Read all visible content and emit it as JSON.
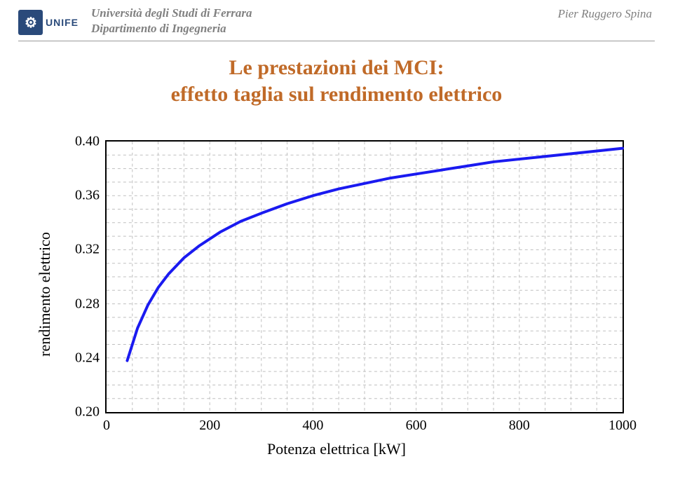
{
  "header": {
    "logo_text": "UNIFE",
    "logo_mark": "⚙",
    "uni_line1": "Università degli Studi di Ferrara",
    "uni_line2": "Dipartimento di Ingegneria",
    "author": "Pier Ruggero Spina"
  },
  "title": {
    "line1": "Le prestazioni dei MCI:",
    "line2": "effetto taglia sul rendimento elettrico",
    "color": "#c06a28"
  },
  "chart": {
    "type": "line",
    "xlabel": "Potenza elettrica [kW]",
    "ylabel": "rendimento elettrico",
    "xlim": [
      0,
      1000
    ],
    "ylim": [
      0.2,
      0.4
    ],
    "xtick_step": 200,
    "ytick_step": 0.04,
    "x_minor_step": 50,
    "y_minor_step": 0.01,
    "xticks": [
      0,
      200,
      400,
      600,
      800,
      1000
    ],
    "yticks": [
      0.2,
      0.24,
      0.28,
      0.32,
      0.36,
      0.4
    ],
    "ytick_labels": [
      "0.20",
      "0.24",
      "0.28",
      "0.32",
      "0.36",
      "0.40"
    ],
    "background_color": "#ffffff",
    "border_color": "#000000",
    "grid_color": "#bfbfbf",
    "grid_dash": "4 4",
    "label_fontsize": 22,
    "tick_fontsize": 20,
    "series": [
      {
        "name": "rendimento",
        "color": "#1a1af0",
        "line_width": 4,
        "x": [
          40,
          60,
          80,
          100,
          120,
          150,
          180,
          220,
          260,
          300,
          350,
          400,
          450,
          500,
          550,
          600,
          650,
          700,
          750,
          800,
          850,
          900,
          950,
          1000
        ],
        "y": [
          0.238,
          0.262,
          0.279,
          0.292,
          0.302,
          0.314,
          0.323,
          0.333,
          0.341,
          0.347,
          0.354,
          0.36,
          0.365,
          0.369,
          0.373,
          0.376,
          0.379,
          0.382,
          0.385,
          0.387,
          0.389,
          0.391,
          0.393,
          0.395
        ]
      }
    ]
  }
}
